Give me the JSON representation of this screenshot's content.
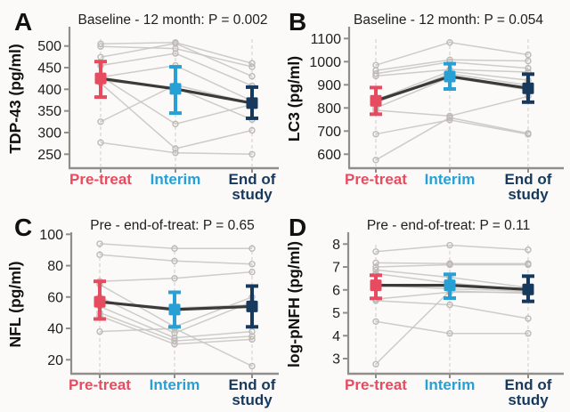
{
  "figure": {
    "colors": {
      "pre_treat": "#e74b5f",
      "interim": "#27a0d6",
      "end_of_study": "#17395d",
      "mean_line": "#3a3a38",
      "subject_line": "#c9c6c2",
      "subject_marker": "#bcb9b6",
      "axis": "#908e8b",
      "guide": "#d9d6d2",
      "text": "#1e1e1e"
    },
    "categories": [
      {
        "label": "Pre-treat",
        "color": "#e74b5f"
      },
      {
        "label": "Interim",
        "color": "#27a0d6"
      },
      {
        "label": "End of study",
        "color": "#17395d"
      }
    ]
  },
  "chart_data": [
    {
      "panel": "A",
      "type": "line",
      "title": "Baseline - 12 month: P = 0.002",
      "ylabel": "TDP-43 (pg/ml)",
      "yticks": [
        250,
        300,
        350,
        400,
        450,
        500
      ],
      "ylim": [
        220,
        524
      ],
      "categories": [
        "Pre-treat",
        "Interim",
        "End of study"
      ],
      "means": [
        425,
        401,
        368
      ],
      "ci_low": [
        382,
        345,
        333
      ],
      "ci_high": [
        464,
        452,
        405
      ],
      "subjects": [
        [
          505,
          508,
          460
        ],
        [
          499,
          494,
          452
        ],
        [
          474,
          506,
          430
        ],
        [
          455,
          483,
          408
        ],
        [
          430,
          320,
          365
        ],
        [
          428,
          455,
          373
        ],
        [
          420,
          404,
          330
        ],
        [
          414,
          263,
          305
        ],
        [
          325,
          410,
          368
        ],
        [
          277,
          253,
          250
        ]
      ]
    },
    {
      "panel": "B",
      "type": "line",
      "title": "Baseline - 12 month: P = 0.054",
      "ylabel": "LC3 (pg/ml)",
      "yticks": [
        600,
        700,
        800,
        900,
        1000,
        1100
      ],
      "ylim": [
        543,
        1113
      ],
      "categories": [
        "Pre-treat",
        "Interim",
        "End of study"
      ],
      "means": [
        831,
        936,
        885
      ],
      "ci_low": [
        773,
        882,
        825
      ],
      "ci_high": [
        888,
        991,
        946
      ],
      "subjects": [
        [
          985,
          1083,
          1030
        ],
        [
          962,
          1008,
          1003
        ],
        [
          948,
          998,
          972
        ],
        [
          938,
          966,
          955
        ],
        [
          835,
          958,
          920
        ],
        [
          822,
          948,
          898
        ],
        [
          800,
          932,
          878
        ],
        [
          790,
          765,
          850
        ],
        [
          687,
          748,
          686
        ],
        [
          575,
          758,
          690
        ]
      ]
    },
    {
      "panel": "C",
      "type": "line",
      "title": "Pre - end-of-treat: P = 0.65",
      "ylabel": "NFL (pg/ml)",
      "yticks": [
        20,
        40,
        60,
        80,
        100
      ],
      "ylim": [
        12,
        96
      ],
      "categories": [
        "Pre-treat",
        "Interim",
        "End of study"
      ],
      "means": [
        57,
        52,
        54
      ],
      "ci_low": [
        46,
        41,
        41
      ],
      "ci_high": [
        70,
        63,
        67
      ],
      "subjects": [
        [
          94,
          91,
          91
        ],
        [
          87,
          83,
          81
        ],
        [
          70,
          72,
          76
        ],
        [
          68,
          41,
          60
        ],
        [
          60,
          37,
          57
        ],
        [
          57,
          53,
          55
        ],
        [
          54,
          34,
          38
        ],
        [
          50,
          32,
          35
        ],
        [
          48,
          30,
          33
        ],
        [
          38,
          40,
          16
        ]
      ]
    },
    {
      "panel": "D",
      "type": "line",
      "title": "Pre - end-of-treat: P = 0.11",
      "ylabel": "log-pNFH (pg/ml)",
      "yticks": [
        3,
        4,
        5,
        6,
        7,
        8
      ],
      "ylim": [
        2.3,
        8.1
      ],
      "categories": [
        "Pre-treat",
        "Interim",
        "End of study"
      ],
      "means": [
        6.2,
        6.2,
        6.02
      ],
      "ci_low": [
        5.63,
        5.64,
        5.5
      ],
      "ci_high": [
        6.64,
        6.68,
        6.6
      ],
      "subjects": [
        [
          7.67,
          7.95,
          7.75
        ],
        [
          7.18,
          7.15,
          7.15
        ],
        [
          7.0,
          7.1,
          7.1
        ],
        [
          6.87,
          6.55,
          6.1
        ],
        [
          6.71,
          6.3,
          6.0
        ],
        [
          6.2,
          6.05,
          5.95
        ],
        [
          5.6,
          5.9,
          5.9
        ],
        [
          5.53,
          5.35,
          4.75
        ],
        [
          4.62,
          4.1,
          4.1
        ],
        [
          2.76,
          5.95,
          5.85
        ]
      ]
    }
  ]
}
